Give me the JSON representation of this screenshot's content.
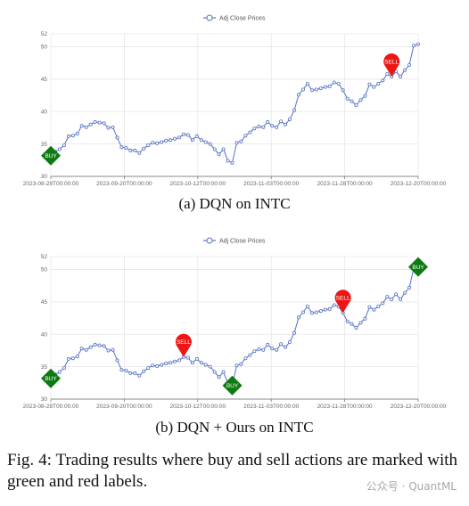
{
  "chart_data": [
    {
      "type": "line",
      "legend": "Adj Close Prices",
      "legend_position": "top-center",
      "x_tick_labels": [
        "2023-08-28T00:00:00",
        "2023-09-20T00:00:00",
        "2023-10-12T00:00:00",
        "2023-11-03T00:00:00",
        "2023-11-28T00:00:00",
        "2023-12-20T00:00:00"
      ],
      "ylim": [
        30,
        52
      ],
      "y_ticks": [
        30,
        35,
        40,
        45,
        50,
        52
      ],
      "grid": true,
      "series": [
        {
          "color": "#5470c6",
          "values": [
            33.2,
            33.8,
            34.2,
            34.8,
            36.2,
            36.3,
            36.6,
            37.8,
            37.6,
            38.0,
            38.4,
            38.3,
            38.2,
            37.5,
            37.6,
            36.0,
            34.5,
            34.4,
            34.0,
            34.0,
            33.6,
            34.3,
            34.8,
            35.2,
            35.1,
            35.3,
            35.5,
            35.6,
            35.8,
            36.0,
            36.5,
            36.4,
            35.6,
            36.2,
            35.6,
            35.3,
            35.0,
            34.2,
            33.4,
            34.2,
            32.4,
            32.1,
            35.2,
            35.4,
            36.3,
            36.8,
            37.4,
            37.7,
            37.6,
            38.4,
            37.8,
            37.6,
            38.5,
            38.0,
            38.8,
            40.2,
            42.6,
            43.4,
            44.3,
            43.3,
            43.4,
            43.6,
            43.8,
            43.9,
            44.5,
            44.3,
            43.3,
            42.0,
            41.6,
            41.0,
            41.8,
            42.4,
            44.2,
            43.8,
            44.3,
            44.8,
            45.8,
            45.4,
            46.2,
            45.4,
            46.4,
            47.2,
            50.2,
            50.4
          ]
        }
      ],
      "markers": [
        {
          "label": "BUY",
          "index": 0,
          "color": "#0d7a12"
        },
        {
          "label": "SELL",
          "index": 77,
          "color": "#ee1515"
        }
      ]
    },
    {
      "type": "line",
      "legend": "Adj Close Prices",
      "legend_position": "top-center",
      "x_tick_labels": [
        "2023-08-28T00:00:00",
        "2023-09-20T00:00:00",
        "2023-10-12T00:00:00",
        "2023-11-03T00:00:00",
        "2023-11-28T00:00:00",
        "2023-12-20T00:00:00"
      ],
      "ylim": [
        30,
        52
      ],
      "y_ticks": [
        30,
        35,
        40,
        45,
        50,
        52
      ],
      "grid": true,
      "series": [
        {
          "color": "#5470c6",
          "values": [
            33.2,
            33.8,
            34.2,
            34.8,
            36.2,
            36.3,
            36.6,
            37.8,
            37.6,
            38.0,
            38.4,
            38.3,
            38.2,
            37.5,
            37.6,
            36.0,
            34.5,
            34.4,
            34.0,
            34.0,
            33.6,
            34.3,
            34.8,
            35.2,
            35.1,
            35.3,
            35.5,
            35.6,
            35.8,
            36.0,
            36.5,
            36.4,
            35.6,
            36.2,
            35.6,
            35.3,
            35.0,
            34.2,
            33.4,
            34.2,
            32.4,
            32.1,
            35.2,
            35.4,
            36.3,
            36.8,
            37.4,
            37.7,
            37.6,
            38.4,
            37.8,
            37.6,
            38.5,
            38.0,
            38.8,
            40.2,
            42.6,
            43.4,
            44.3,
            43.3,
            43.4,
            43.6,
            43.8,
            43.9,
            44.5,
            44.3,
            43.3,
            42.0,
            41.6,
            41.0,
            41.8,
            42.4,
            44.2,
            43.8,
            44.3,
            44.8,
            45.8,
            45.4,
            46.2,
            45.4,
            46.4,
            47.2,
            50.2,
            50.4
          ]
        }
      ],
      "markers": [
        {
          "label": "BUY",
          "index": 0,
          "color": "#0d7a12"
        },
        {
          "label": "SELL",
          "index": 30,
          "color": "#ee1515"
        },
        {
          "label": "BUY",
          "index": 41,
          "color": "#0d7a12"
        },
        {
          "label": "SELL",
          "index": 66,
          "color": "#ee1515"
        },
        {
          "label": "BUY",
          "index": 83,
          "color": "#0d7a12"
        }
      ]
    }
  ],
  "captions": {
    "a": "(a) DQN on INTC",
    "b": "(b) DQN + Ours on INTC",
    "figure": "Fig. 4: Trading results where buy and sell actions are marked with green and red labels."
  },
  "watermark": "公众号 · QuantML"
}
